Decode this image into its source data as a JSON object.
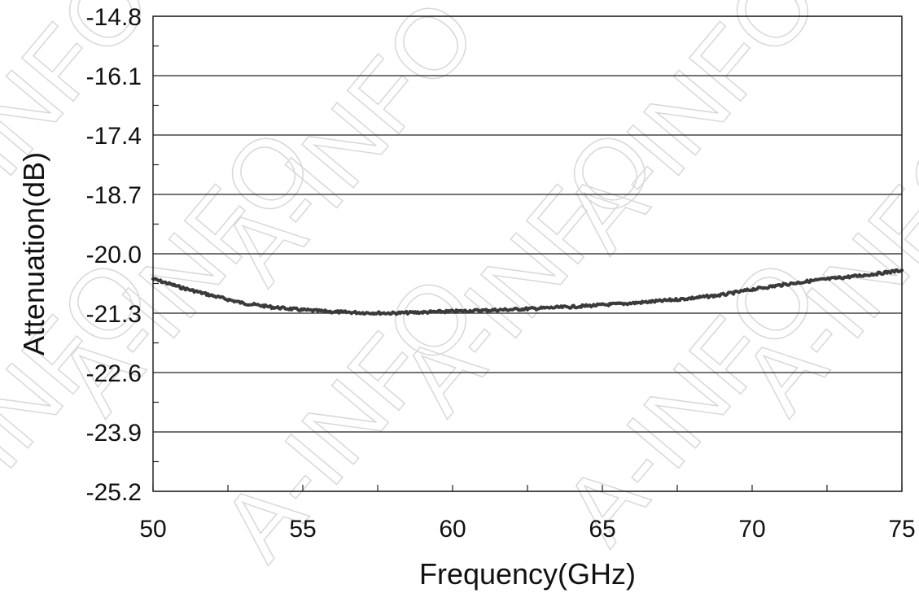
{
  "chart_data": {
    "type": "line",
    "title": "",
    "xlabel": "Frequency(GHz)",
    "ylabel": "Attenuation(dB)",
    "xlim": [
      50,
      75
    ],
    "ylim": [
      -25.2,
      -14.8
    ],
    "x_ticks": [
      50,
      55,
      60,
      65,
      70,
      75
    ],
    "x_tick_labels": [
      "50",
      "55",
      "60",
      "65",
      "70",
      "75"
    ],
    "y_ticks": [
      -14.8,
      -16.1,
      -17.4,
      -18.7,
      -20.0,
      -21.3,
      -22.6,
      -23.9,
      -25.2
    ],
    "y_tick_labels": [
      "-14.8",
      "-16.1",
      "-17.4",
      "-18.7",
      "-20.0",
      "-21.3",
      "-22.6",
      "-23.9",
      "-25.2"
    ],
    "grid": "horizontal",
    "legend": "none",
    "colors": {
      "line": "#3a3a3a",
      "grid": "#222222",
      "watermark": "#d8d8d8"
    },
    "series": [
      {
        "x": [
          50,
          51,
          52,
          53,
          54,
          55,
          56,
          57,
          58,
          59,
          60,
          61,
          62,
          63,
          64,
          65,
          66,
          67,
          68,
          69,
          70,
          71,
          72,
          73,
          74,
          75
        ],
        "values": [
          -20.55,
          -20.75,
          -20.92,
          -21.08,
          -21.17,
          -21.23,
          -21.27,
          -21.29,
          -21.3,
          -21.28,
          -21.26,
          -21.24,
          -21.22,
          -21.19,
          -21.16,
          -21.12,
          -21.08,
          -21.03,
          -20.97,
          -20.9,
          -20.78,
          -20.68,
          -20.59,
          -20.52,
          -20.45,
          -20.36
        ]
      }
    ]
  },
  "watermark": {
    "text": "A-INFO"
  }
}
